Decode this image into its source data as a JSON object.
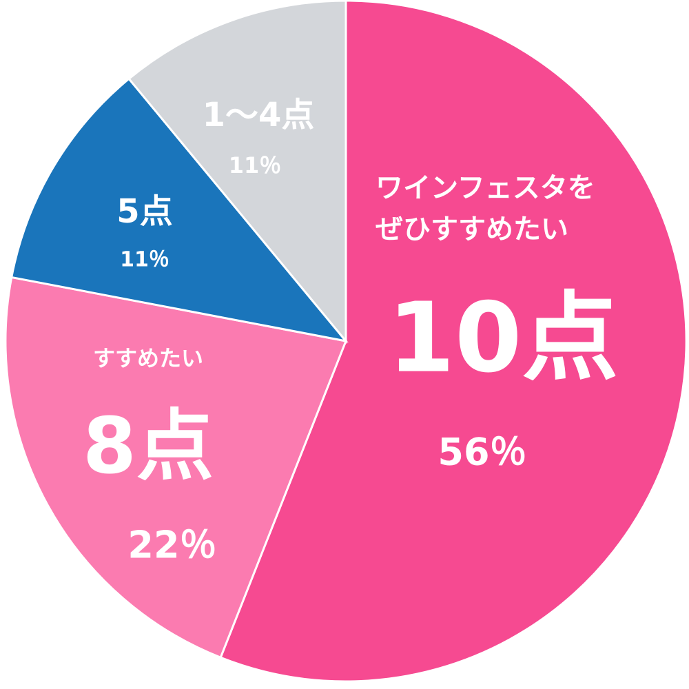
{
  "chart_data": {
    "type": "pie",
    "categories": [
      "10点",
      "8点",
      "5点",
      "1〜4点"
    ],
    "descriptions": [
      [
        "ワインフェスタを",
        "ぜひすすめたい"
      ],
      [
        "すすめたい"
      ],
      null,
      null
    ],
    "values": [
      56,
      22,
      11,
      11
    ],
    "value_labels": [
      "56％",
      "22％",
      "11％",
      "11％"
    ],
    "colors": [
      "#f64a91",
      "#fb7bb0",
      "#1a75bb",
      "#d3d6da"
    ]
  }
}
